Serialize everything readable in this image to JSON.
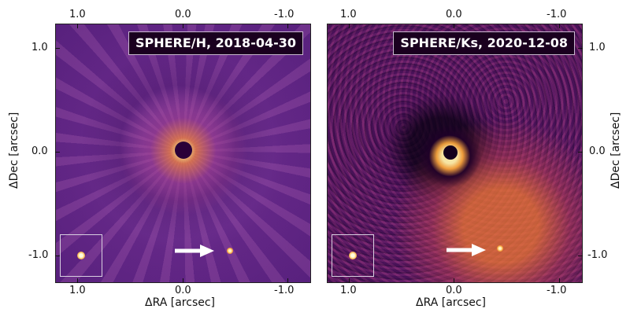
{
  "panels": {
    "left": {
      "label": "SPHERE/H, 2018-04-30",
      "x_ticks_top": [
        "1.0",
        "0.0",
        "-1.0"
      ],
      "x_ticks_bottom": [
        "1.0",
        "0.0",
        "-1.0"
      ],
      "y_ticks": [
        "1.0",
        "0.0",
        "-1.0"
      ],
      "x_axis_label": "ΔRA [arcsec]",
      "y_axis_label": "ΔDec [arcsec]"
    },
    "right": {
      "label": "SPHERE/Ks, 2020-12-08",
      "x_ticks_top": [
        "1.0",
        "0.0",
        "-1.0"
      ],
      "x_ticks_bottom": [
        "1.0",
        "0.0",
        "-1.0"
      ],
      "y_ticks": [
        "1.0",
        "0.0",
        "-1.0"
      ],
      "x_axis_label": "ΔRA [arcsec]",
      "y_axis_label": "ΔDec [arcsec]"
    }
  },
  "colors": {
    "arrow": "#ffffff",
    "frame": "#222222"
  }
}
